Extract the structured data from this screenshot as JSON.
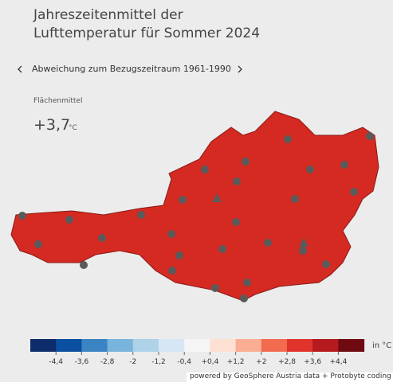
{
  "header": {
    "title_lines": [
      "Jahreszeitenmittel der",
      "Lufttemperatur für Sommer 2024"
    ]
  },
  "nav": {
    "label": "Abweichung zum Bezugszeitraum 1961-1990"
  },
  "summary": {
    "label": "Flächenmittel",
    "value": "+3,7",
    "unit": "°C"
  },
  "legend": {
    "colors": [
      "#0d2c6b",
      "#0a4fa0",
      "#3a84c4",
      "#78b4dc",
      "#aed2e8",
      "#d6e6f4",
      "#f5f5f5",
      "#fde0d2",
      "#f9ad93",
      "#f26b4f",
      "#e0332b",
      "#b51a1f",
      "#6e0a10"
    ],
    "labels": [
      "-4,4",
      "-3,6",
      "-2,8",
      "-2",
      "-1,2",
      "-0,4",
      "+0,4",
      "+1,2",
      "+2",
      "+2,8",
      "+3,6",
      "+4,4"
    ],
    "unit": "in °C"
  },
  "footer": {
    "credit": "powered by GeoSphere Austria data + Protobyte coding"
  }
}
